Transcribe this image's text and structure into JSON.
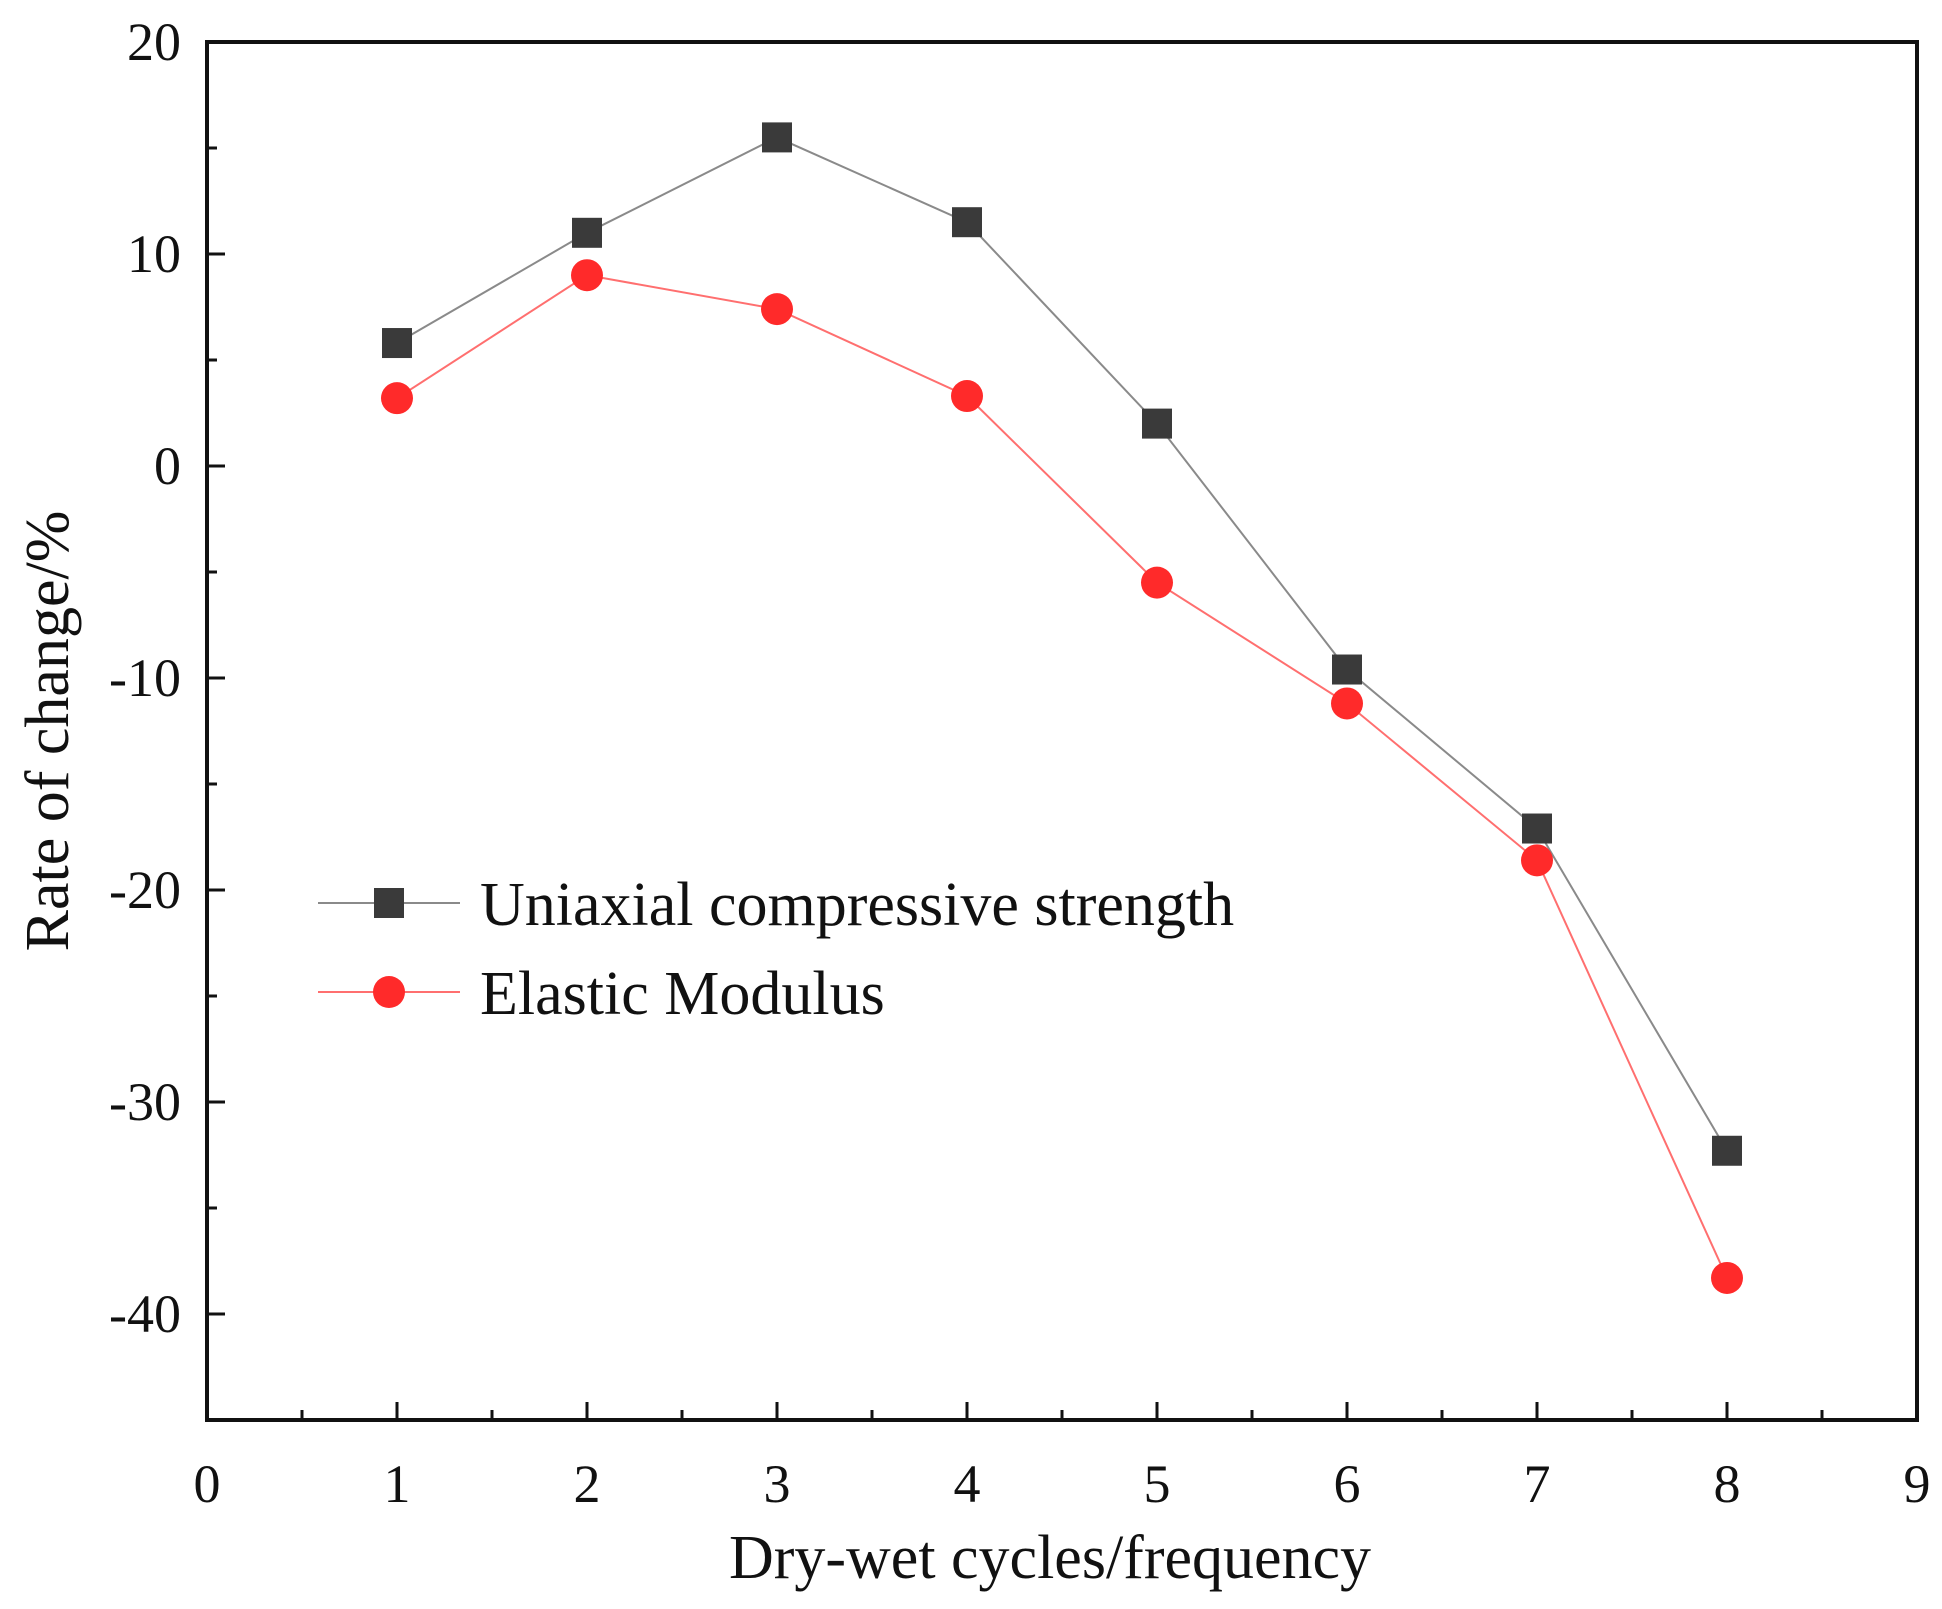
{
  "chart_data": {
    "type": "line",
    "title": "",
    "xlabel": "Dry-wet cycles/frequency",
    "ylabel": "Rate of change/%",
    "xlim": [
      0,
      9
    ],
    "ylim": [
      -45,
      20
    ],
    "x_ticks": [
      0,
      1,
      2,
      3,
      4,
      5,
      6,
      7,
      8,
      9
    ],
    "x_tick_labels": [
      "0",
      "1",
      "2",
      "3",
      "4",
      "5",
      "6",
      "7",
      "8",
      "9"
    ],
    "y_ticks": [
      20,
      10,
      0,
      -10,
      -20,
      -30,
      -40
    ],
    "y_tick_labels": [
      "20",
      "10",
      "0",
      "-10",
      "-20",
      "-30",
      "-40"
    ],
    "grid": false,
    "legend_position": "center-left",
    "x": [
      1,
      2,
      3,
      4,
      5,
      6,
      7,
      8
    ],
    "series": [
      {
        "name": "Uniaxial compressive strength",
        "marker": "square",
        "color": "#3a3a3a",
        "line_color": "#8a8a8a",
        "values": [
          5.8,
          11.0,
          15.5,
          11.5,
          2.0,
          -9.6,
          -17.1,
          -32.3
        ]
      },
      {
        "name": "Elastic Modulus",
        "marker": "circle",
        "color": "#ff2a2a",
        "line_color": "#ff6f6f",
        "values": [
          3.2,
          9.0,
          7.4,
          3.3,
          -5.5,
          -11.2,
          -18.6,
          -38.3
        ]
      }
    ]
  }
}
